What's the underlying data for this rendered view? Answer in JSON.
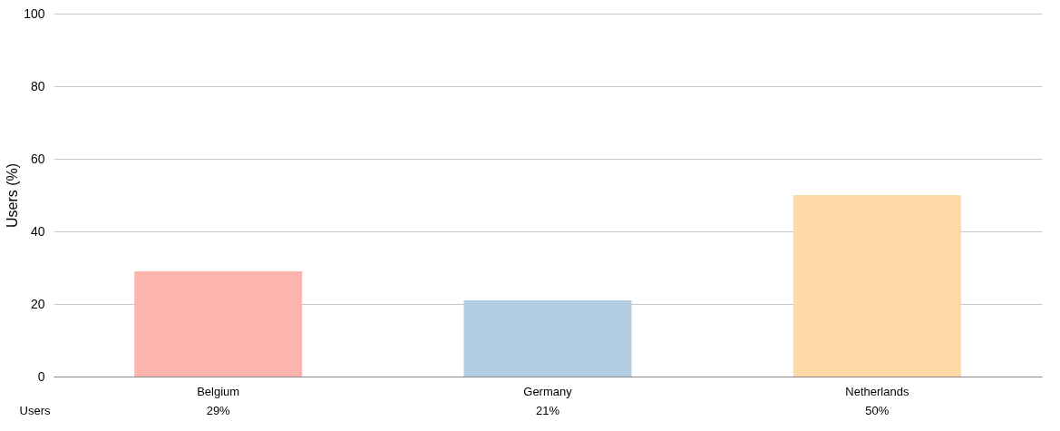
{
  "chart_data": {
    "type": "bar",
    "ylabel": "Users (%)",
    "categories": [
      "Belgium",
      "Germany",
      "Netherlands"
    ],
    "series": [
      {
        "name": "Users",
        "values": [
          29,
          21,
          50
        ],
        "value_labels": [
          "29%",
          "21%",
          "50%"
        ]
      }
    ],
    "colors": [
      "#fbb4ae",
      "#b3cde3",
      "#fed9a6"
    ],
    "ylim": [
      0,
      100
    ],
    "yticks": [
      0,
      20,
      40,
      60,
      80,
      100
    ],
    "grid": "y"
  }
}
